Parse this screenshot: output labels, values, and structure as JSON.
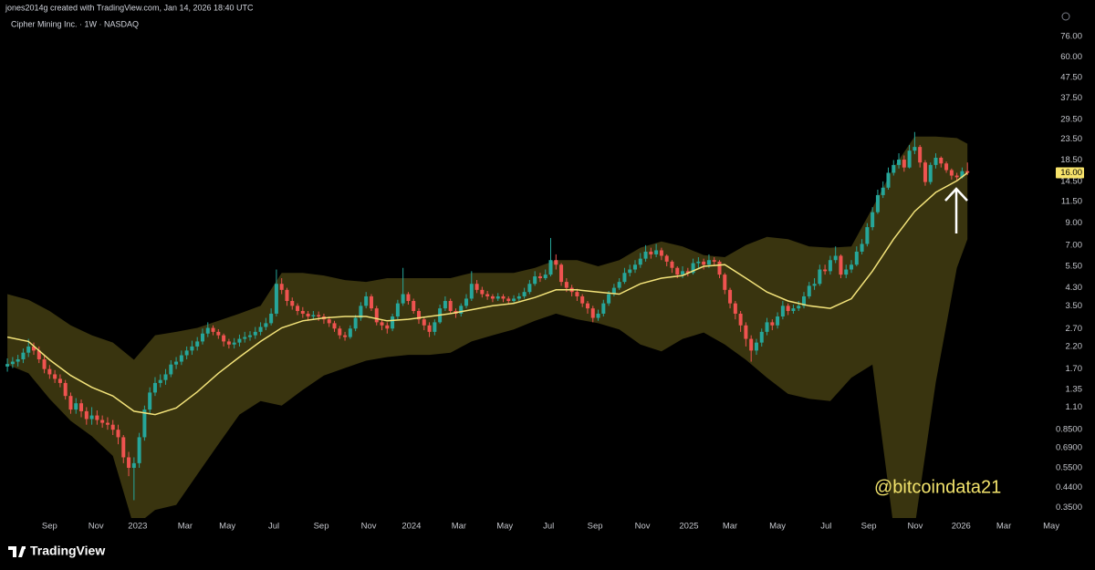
{
  "header": "jones2014g created with TradingView.com, Jan 14, 2026 18:40 UTC",
  "footer": {
    "brand": "TradingView"
  },
  "chart_data": {
    "type": "candlestick",
    "title": "Cipher Mining Inc. · 1W · NASDAQ",
    "annotation": "@bitcoindata21",
    "annotation_color": "#f2e36c",
    "last_price_label": "16.00",
    "up_color": "#26a69a",
    "down_color": "#ef5350",
    "y_scale": "log",
    "ylim": [
      0.31,
      95.5
    ],
    "yticks": [
      {
        "value": 76,
        "label": "76.00"
      },
      {
        "value": 60,
        "label": "60.00"
      },
      {
        "value": 47.5,
        "label": "47.50"
      },
      {
        "value": 37.5,
        "label": "37.50"
      },
      {
        "value": 29.5,
        "label": "29.50"
      },
      {
        "value": 23.5,
        "label": "23.50"
      },
      {
        "value": 18.5,
        "label": "18.50"
      },
      {
        "value": 14.5,
        "label": "14.50"
      },
      {
        "value": 11.5,
        "label": "11.50"
      },
      {
        "value": 9,
        "label": "9.00"
      },
      {
        "value": 7,
        "label": "7.00"
      },
      {
        "value": 5.5,
        "label": "5.50"
      },
      {
        "value": 4.3,
        "label": "4.30"
      },
      {
        "value": 3.5,
        "label": "3.50"
      },
      {
        "value": 2.7,
        "label": "2.70"
      },
      {
        "value": 2.2,
        "label": "2.20"
      },
      {
        "value": 1.7,
        "label": "1.70"
      },
      {
        "value": 1.35,
        "label": "1.35"
      },
      {
        "value": 1.1,
        "label": "1.10"
      },
      {
        "value": 0.85,
        "label": "0.8500"
      },
      {
        "value": 0.69,
        "label": "0.6900"
      },
      {
        "value": 0.55,
        "label": "0.5500"
      },
      {
        "value": 0.44,
        "label": "0.4400"
      },
      {
        "value": 0.35,
        "label": "0.3500"
      }
    ],
    "xlim": [
      -1.4,
      198.4
    ],
    "xticks": [
      {
        "value": 8,
        "label": "Sep"
      },
      {
        "value": 16.8,
        "label": "Nov"
      },
      {
        "value": 24.7,
        "label": "2023"
      },
      {
        "value": 33.7,
        "label": "Mar"
      },
      {
        "value": 41.7,
        "label": "May"
      },
      {
        "value": 50.5,
        "label": "Jul"
      },
      {
        "value": 59.5,
        "label": "Sep"
      },
      {
        "value": 68.5,
        "label": "Nov"
      },
      {
        "value": 76.6,
        "label": "2024"
      },
      {
        "value": 85.6,
        "label": "Mar"
      },
      {
        "value": 94.3,
        "label": "May"
      },
      {
        "value": 102.6,
        "label": "Jul"
      },
      {
        "value": 111.4,
        "label": "Sep"
      },
      {
        "value": 120.4,
        "label": "Nov"
      },
      {
        "value": 129.2,
        "label": "2025"
      },
      {
        "value": 137,
        "label": "Mar"
      },
      {
        "value": 146,
        "label": "May"
      },
      {
        "value": 155.2,
        "label": "Jul"
      },
      {
        "value": 163.3,
        "label": "Sep"
      },
      {
        "value": 172.1,
        "label": "Nov"
      },
      {
        "value": 180.8,
        "label": "2026"
      },
      {
        "value": 188.9,
        "label": "Mar"
      },
      {
        "value": 197.9,
        "label": "May"
      }
    ],
    "candles": [
      [
        1.75,
        1.92,
        1.65,
        1.8
      ],
      [
        1.8,
        1.95,
        1.72,
        1.85
      ],
      [
        1.85,
        2.0,
        1.75,
        1.9
      ],
      [
        1.9,
        2.15,
        1.82,
        2.05
      ],
      [
        2.05,
        2.4,
        1.95,
        2.2
      ],
      [
        2.2,
        2.3,
        2.0,
        2.1
      ],
      [
        2.1,
        2.2,
        1.82,
        1.9
      ],
      [
        1.9,
        1.98,
        1.62,
        1.7
      ],
      [
        1.7,
        1.78,
        1.52,
        1.6
      ],
      [
        1.6,
        1.68,
        1.45,
        1.52
      ],
      [
        1.52,
        1.6,
        1.38,
        1.45
      ],
      [
        1.45,
        1.5,
        1.2,
        1.25
      ],
      [
        1.25,
        1.3,
        1.02,
        1.07
      ],
      [
        1.07,
        1.22,
        1.02,
        1.15
      ],
      [
        1.15,
        1.2,
        0.98,
        1.05
      ],
      [
        1.05,
        1.1,
        0.9,
        0.96
      ],
      [
        0.96,
        1.1,
        0.9,
        1.0
      ],
      [
        1.0,
        1.06,
        0.9,
        0.95
      ],
      [
        0.95,
        1.0,
        0.87,
        0.92
      ],
      [
        0.92,
        0.98,
        0.85,
        0.9
      ],
      [
        0.9,
        0.95,
        0.8,
        0.85
      ],
      [
        0.85,
        0.9,
        0.72,
        0.78
      ],
      [
        0.78,
        0.8,
        0.58,
        0.62
      ],
      [
        0.62,
        0.66,
        0.5,
        0.55
      ],
      [
        0.55,
        0.62,
        0.38,
        0.58
      ],
      [
        0.58,
        0.82,
        0.55,
        0.78
      ],
      [
        0.78,
        1.12,
        0.75,
        1.07
      ],
      [
        1.07,
        1.38,
        1.02,
        1.3
      ],
      [
        1.3,
        1.55,
        1.25,
        1.45
      ],
      [
        1.45,
        1.6,
        1.38,
        1.5
      ],
      [
        1.5,
        1.7,
        1.42,
        1.6
      ],
      [
        1.6,
        1.88,
        1.55,
        1.79
      ],
      [
        1.79,
        1.95,
        1.7,
        1.85
      ],
      [
        1.85,
        2.1,
        1.78,
        1.99
      ],
      [
        1.99,
        2.2,
        1.9,
        2.1
      ],
      [
        2.1,
        2.35,
        2.0,
        2.2
      ],
      [
        2.2,
        2.45,
        2.1,
        2.33
      ],
      [
        2.33,
        2.7,
        2.25,
        2.55
      ],
      [
        2.55,
        2.9,
        2.45,
        2.72
      ],
      [
        2.72,
        2.8,
        2.5,
        2.6
      ],
      [
        2.6,
        2.68,
        2.4,
        2.5
      ],
      [
        2.5,
        2.55,
        2.2,
        2.33
      ],
      [
        2.33,
        2.4,
        2.15,
        2.25
      ],
      [
        2.25,
        2.42,
        2.15,
        2.3
      ],
      [
        2.3,
        2.52,
        2.2,
        2.4
      ],
      [
        2.4,
        2.6,
        2.3,
        2.45
      ],
      [
        2.45,
        2.62,
        2.35,
        2.5
      ],
      [
        2.5,
        2.75,
        2.4,
        2.6
      ],
      [
        2.6,
        2.9,
        2.5,
        2.75
      ],
      [
        2.75,
        3.05,
        2.65,
        2.87
      ],
      [
        2.87,
        3.4,
        2.8,
        3.2
      ],
      [
        3.2,
        5.3,
        3.1,
        4.5
      ],
      [
        4.5,
        4.8,
        4.0,
        4.2
      ],
      [
        4.2,
        4.3,
        3.5,
        3.7
      ],
      [
        3.7,
        3.85,
        3.35,
        3.5
      ],
      [
        3.5,
        3.6,
        3.15,
        3.3
      ],
      [
        3.3,
        3.45,
        3.05,
        3.2
      ],
      [
        3.2,
        3.3,
        2.95,
        3.1
      ],
      [
        3.1,
        3.3,
        2.98,
        3.15
      ],
      [
        3.15,
        3.28,
        2.95,
        3.1
      ],
      [
        3.1,
        3.2,
        2.85,
        3.0
      ],
      [
        3.0,
        3.1,
        2.75,
        2.87
      ],
      [
        2.87,
        2.95,
        2.6,
        2.7
      ],
      [
        2.7,
        2.78,
        2.4,
        2.5
      ],
      [
        2.5,
        2.6,
        2.35,
        2.45
      ],
      [
        2.45,
        2.8,
        2.4,
        2.7
      ],
      [
        2.7,
        3.15,
        2.62,
        3.05
      ],
      [
        3.05,
        3.65,
        2.95,
        3.5
      ],
      [
        3.5,
        4.1,
        3.4,
        3.9
      ],
      [
        3.9,
        4.0,
        3.3,
        3.4
      ],
      [
        3.4,
        3.5,
        2.8,
        2.9
      ],
      [
        2.9,
        3.0,
        2.65,
        2.8
      ],
      [
        2.8,
        2.9,
        2.55,
        2.7
      ],
      [
        2.7,
        3.2,
        2.62,
        3.1
      ],
      [
        3.1,
        3.75,
        3.0,
        3.6
      ],
      [
        3.6,
        5.4,
        3.5,
        4.0
      ],
      [
        4.0,
        4.1,
        3.55,
        3.7
      ],
      [
        3.7,
        3.8,
        3.2,
        3.3
      ],
      [
        3.3,
        3.4,
        2.85,
        3.0
      ],
      [
        3.0,
        3.1,
        2.65,
        2.8
      ],
      [
        2.8,
        2.9,
        2.45,
        2.6
      ],
      [
        2.6,
        3.0,
        2.5,
        2.9
      ],
      [
        2.9,
        3.55,
        2.85,
        3.4
      ],
      [
        3.4,
        3.9,
        3.3,
        3.7
      ],
      [
        3.7,
        3.8,
        3.2,
        3.3
      ],
      [
        3.3,
        3.4,
        3.05,
        3.2
      ],
      [
        3.2,
        3.6,
        3.1,
        3.5
      ],
      [
        3.5,
        4.0,
        3.4,
        3.8
      ],
      [
        3.8,
        5.2,
        3.7,
        4.5
      ],
      [
        4.5,
        4.7,
        4.05,
        4.2
      ],
      [
        4.2,
        4.35,
        3.85,
        4.0
      ],
      [
        4.0,
        4.15,
        3.75,
        3.9
      ],
      [
        3.9,
        4.0,
        3.65,
        3.8
      ],
      [
        3.8,
        4.05,
        3.7,
        3.9
      ],
      [
        3.9,
        4.0,
        3.65,
        3.8
      ],
      [
        3.8,
        3.9,
        3.55,
        3.7
      ],
      [
        3.7,
        3.95,
        3.6,
        3.8
      ],
      [
        3.8,
        4.05,
        3.7,
        3.9
      ],
      [
        3.9,
        4.3,
        3.8,
        4.1
      ],
      [
        4.1,
        4.7,
        4.0,
        4.5
      ],
      [
        4.5,
        5.2,
        4.4,
        4.9
      ],
      [
        4.9,
        5.1,
        4.6,
        4.8
      ],
      [
        4.8,
        5.3,
        4.7,
        5.0
      ],
      [
        5.0,
        7.6,
        4.9,
        5.9
      ],
      [
        5.9,
        6.3,
        5.3,
        5.6
      ],
      [
        5.6,
        5.7,
        4.4,
        4.6
      ],
      [
        4.6,
        4.8,
        4.1,
        4.3
      ],
      [
        4.3,
        4.45,
        3.9,
        4.1
      ],
      [
        4.1,
        4.25,
        3.7,
        3.9
      ],
      [
        3.9,
        4.0,
        3.45,
        3.6
      ],
      [
        3.6,
        3.7,
        3.2,
        3.4
      ],
      [
        3.4,
        3.5,
        2.9,
        3.05
      ],
      [
        3.05,
        3.35,
        2.95,
        3.2
      ],
      [
        3.2,
        3.75,
        3.1,
        3.6
      ],
      [
        3.6,
        4.15,
        3.5,
        4.0
      ],
      [
        4.0,
        4.5,
        3.9,
        4.3
      ],
      [
        4.3,
        4.8,
        4.2,
        4.6
      ],
      [
        4.6,
        5.4,
        4.5,
        5.1
      ],
      [
        5.1,
        5.6,
        4.9,
        5.3
      ],
      [
        5.3,
        5.9,
        5.1,
        5.6
      ],
      [
        5.6,
        6.4,
        5.4,
        6.0
      ],
      [
        6.0,
        7.0,
        5.8,
        6.5
      ],
      [
        6.5,
        6.8,
        6.0,
        6.3
      ],
      [
        6.3,
        7.1,
        6.1,
        6.6
      ],
      [
        6.6,
        6.8,
        5.9,
        6.2
      ],
      [
        6.2,
        6.3,
        5.5,
        5.8
      ],
      [
        5.8,
        5.9,
        5.1,
        5.4
      ],
      [
        5.4,
        5.5,
        4.8,
        5.0
      ],
      [
        5.0,
        5.5,
        4.8,
        5.2
      ],
      [
        5.2,
        5.4,
        4.9,
        5.1
      ],
      [
        5.1,
        6.0,
        5.0,
        5.7
      ],
      [
        5.7,
        6.1,
        5.4,
        5.8
      ],
      [
        5.8,
        6.0,
        5.3,
        5.6
      ],
      [
        5.6,
        6.3,
        5.4,
        5.9
      ],
      [
        5.9,
        6.1,
        5.5,
        5.8
      ],
      [
        5.8,
        5.9,
        4.8,
        5.0
      ],
      [
        5.0,
        5.1,
        4.0,
        4.2
      ],
      [
        4.2,
        4.3,
        3.4,
        3.6
      ],
      [
        3.6,
        3.7,
        3.0,
        3.2
      ],
      [
        3.2,
        3.3,
        2.6,
        2.8
      ],
      [
        2.8,
        2.9,
        2.2,
        2.4
      ],
      [
        2.4,
        2.5,
        1.85,
        2.1
      ],
      [
        2.1,
        2.4,
        2.0,
        2.3
      ],
      [
        2.3,
        2.7,
        2.2,
        2.6
      ],
      [
        2.6,
        3.05,
        2.5,
        2.9
      ],
      [
        2.9,
        3.0,
        2.65,
        2.8
      ],
      [
        2.8,
        3.25,
        2.7,
        3.1
      ],
      [
        3.1,
        3.7,
        3.0,
        3.5
      ],
      [
        3.5,
        3.6,
        3.15,
        3.3
      ],
      [
        3.3,
        3.55,
        3.2,
        3.4
      ],
      [
        3.4,
        3.7,
        3.3,
        3.5
      ],
      [
        3.5,
        4.1,
        3.4,
        3.9
      ],
      [
        3.9,
        4.6,
        3.8,
        4.4
      ],
      [
        4.4,
        4.8,
        4.2,
        4.5
      ],
      [
        4.5,
        5.6,
        4.4,
        5.3
      ],
      [
        5.3,
        5.6,
        5.0,
        5.2
      ],
      [
        5.2,
        6.2,
        5.0,
        5.9
      ],
      [
        5.9,
        6.9,
        5.7,
        6.2
      ],
      [
        6.2,
        6.3,
        4.8,
        5.0
      ],
      [
        5.0,
        5.6,
        4.8,
        5.3
      ],
      [
        5.3,
        5.9,
        5.1,
        5.6
      ],
      [
        5.6,
        6.9,
        5.5,
        6.5
      ],
      [
        6.5,
        7.5,
        6.3,
        7.1
      ],
      [
        7.1,
        9.0,
        6.9,
        8.6
      ],
      [
        8.6,
        10.8,
        8.3,
        10.2
      ],
      [
        10.2,
        13.2,
        10.0,
        12.4
      ],
      [
        12.4,
        14.5,
        12.0,
        13.5
      ],
      [
        13.5,
        17.0,
        13.2,
        16.0
      ],
      [
        16.0,
        18.5,
        15.5,
        17.5
      ],
      [
        17.5,
        20.0,
        16.8,
        18.6
      ],
      [
        18.6,
        19.5,
        16.2,
        17.0
      ],
      [
        17.0,
        22.0,
        16.8,
        20.6
      ],
      [
        20.6,
        25.5,
        19.8,
        21.5
      ],
      [
        21.5,
        22.0,
        17.0,
        18.0
      ],
      [
        18.0,
        18.5,
        13.8,
        14.4
      ],
      [
        14.4,
        18.0,
        14.0,
        17.5
      ],
      [
        17.5,
        20.0,
        16.8,
        19.0
      ],
      [
        19.0,
        19.3,
        17.0,
        17.8
      ],
      [
        17.8,
        18.2,
        16.0,
        16.5
      ],
      [
        16.5,
        16.8,
        14.8,
        15.5
      ],
      [
        15.5,
        16.0,
        14.6,
        15.2
      ],
      [
        15.2,
        17.0,
        15.0,
        16.3
      ],
      [
        16.3,
        18.0,
        15.6,
        16.0
      ]
    ],
    "bands": {
      "fill_color": "#39340f",
      "basis_color": "#f3e37a",
      "x": [
        0,
        4,
        8,
        12,
        16,
        20,
        24,
        28,
        32,
        36,
        40,
        44,
        48,
        52,
        56,
        60,
        64,
        68,
        72,
        76,
        80,
        84,
        88,
        92,
        96,
        100,
        104,
        108,
        112,
        116,
        120,
        124,
        128,
        132,
        136,
        140,
        144,
        148,
        152,
        156,
        160,
        164,
        168,
        172,
        176,
        180,
        182
      ],
      "upper": [
        4.0,
        3.75,
        3.3,
        2.8,
        2.5,
        2.3,
        1.89,
        2.5,
        2.6,
        2.72,
        2.95,
        3.2,
        3.5,
        5.1,
        5.1,
        4.95,
        4.7,
        4.6,
        4.8,
        4.8,
        4.8,
        4.8,
        5.1,
        5.1,
        5.1,
        5.4,
        5.9,
        5.9,
        5.5,
        5.9,
        6.8,
        7.3,
        6.9,
        6.25,
        6.1,
        7.0,
        7.7,
        7.5,
        6.9,
        6.8,
        6.9,
        10.7,
        17.0,
        24.2,
        24.2,
        23.8,
        22.3
      ],
      "lower": [
        1.79,
        1.62,
        1.21,
        0.94,
        0.79,
        0.63,
        0.28,
        0.34,
        0.36,
        0.51,
        0.72,
        1.01,
        1.18,
        1.12,
        1.34,
        1.58,
        1.72,
        1.87,
        1.95,
        2.0,
        2.0,
        2.05,
        2.33,
        2.5,
        2.67,
        2.95,
        3.2,
        3.0,
        2.87,
        2.67,
        2.25,
        2.08,
        2.4,
        2.58,
        2.25,
        1.89,
        1.54,
        1.28,
        1.21,
        1.18,
        1.54,
        1.79,
        0.28,
        0.28,
        1.46,
        5.4,
        7.5
      ],
      "basis": [
        2.45,
        2.33,
        1.89,
        1.58,
        1.38,
        1.25,
        1.05,
        1.01,
        1.09,
        1.31,
        1.62,
        1.95,
        2.33,
        2.72,
        2.95,
        3.05,
        3.1,
        3.1,
        2.95,
        3.0,
        3.1,
        3.2,
        3.35,
        3.5,
        3.6,
        3.85,
        4.2,
        4.2,
        4.1,
        4.0,
        4.5,
        4.8,
        4.95,
        5.5,
        5.6,
        4.8,
        4.1,
        3.7,
        3.5,
        3.4,
        3.8,
        5.2,
        7.5,
        10.3,
        12.8,
        14.6,
        16.0
      ]
    }
  }
}
